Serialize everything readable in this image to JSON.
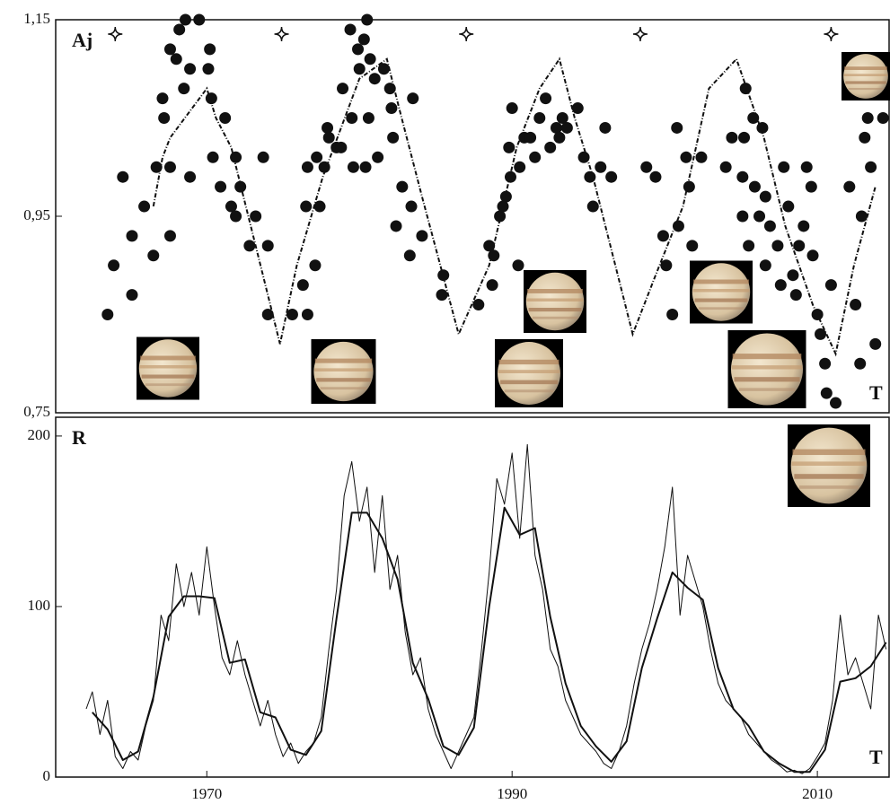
{
  "chart_data": [
    {
      "type": "scatter",
      "ylabel": "Aj",
      "xlabel": "T",
      "xlim": [
        1960.1,
        2014.7
      ],
      "ylim": [
        0.75,
        1.15
      ],
      "yticks": [
        {
          "value": 0.75,
          "label": "0,75"
        },
        {
          "value": 0.95,
          "label": "0,95"
        },
        {
          "value": 1.15,
          "label": "1,15"
        }
      ],
      "markers": [
        1964.0,
        1974.9,
        1987.0,
        1998.4,
        2010.9
      ],
      "points": {
        "color": "#111111",
        "x": [
          1963.5,
          1963.9,
          1964.5,
          1965.1,
          1965.1,
          1965.9,
          1966.5,
          1966.7,
          1967.1,
          1967.2,
          1967.6,
          1967.6,
          1967.6,
          1968.0,
          1968.2,
          1968.5,
          1968.6,
          1968.9,
          1968.9,
          1969.5,
          1970.1,
          1970.2,
          1970.3,
          1970.4,
          1970.9,
          1971.2,
          1971.6,
          1971.9,
          1972.2,
          1971.9,
          1972.8,
          1973.2,
          1973.7,
          1974.0,
          1974.0,
          1975.6,
          1976.6,
          1976.3,
          1976.5,
          1977.1,
          1976.6,
          1977.2,
          1977.4,
          1977.7,
          1977.9,
          1978.0,
          1978.5,
          1978.9,
          1978.8,
          1979.4,
          1979.5,
          1979.6,
          1979.9,
          1980.0,
          1980.3,
          1980.4,
          1980.5,
          1980.6,
          1980.7,
          1981.0,
          1981.2,
          1981.6,
          1982.0,
          1982.2,
          1982.1,
          1982.4,
          1982.8,
          1983.3,
          1983.4,
          1983.5,
          1984.1,
          1985.5,
          1985.4,
          1987.8,
          1988.5,
          1988.7,
          1988.8,
          1989.2,
          1989.4,
          1989.6,
          1989.9,
          1989.8,
          1990.0,
          1990.5,
          1990.4,
          1990.8,
          1991.2,
          1991.5,
          1991.8,
          1992.2,
          1992.5,
          1992.9,
          1993.1,
          1993.3,
          1993.6,
          1994.3,
          1994.7,
          1995.1,
          1995.3,
          1995.8,
          1996.5,
          1996.1,
          1998.8,
          1999.4,
          1999.9,
          2000.1,
          2000.5,
          2000.8,
          2000.9,
          2001.4,
          2001.6,
          2001.8,
          2002.4,
          2002.5,
          2004.0,
          2004.4,
          2005.1,
          2005.1,
          2005.2,
          2005.3,
          2005.5,
          2005.8,
          2005.9,
          2006.2,
          2006.4,
          2006.6,
          2006.6,
          2006.9,
          2007.4,
          2007.6,
          2007.8,
          2008.1,
          2008.4,
          2008.6,
          2008.8,
          2009.1,
          2009.3,
          2009.6,
          2009.7,
          2010.0,
          2010.2,
          2010.5,
          2010.6,
          2010.9,
          2011.2,
          2012.1,
          2012.5,
          2012.8,
          2012.9,
          2013.1,
          2013.3,
          2013.5,
          2013.8,
          2014.3
        ],
        "y": [
          0.85,
          0.9,
          0.99,
          0.93,
          0.87,
          0.96,
          0.91,
          1.0,
          1.07,
          1.05,
          1.0,
          0.93,
          1.12,
          1.11,
          1.14,
          1.08,
          1.15,
          1.1,
          0.99,
          1.15,
          1.1,
          1.12,
          1.07,
          1.01,
          0.98,
          1.05,
          0.96,
          1.01,
          0.98,
          0.95,
          0.92,
          0.95,
          1.01,
          0.92,
          0.85,
          0.85,
          0.85,
          0.88,
          0.96,
          0.9,
          1.0,
          1.01,
          0.96,
          1.0,
          1.04,
          1.03,
          1.02,
          1.08,
          1.02,
          1.14,
          1.05,
          1.0,
          1.12,
          1.1,
          1.13,
          1.0,
          1.15,
          1.05,
          1.11,
          1.09,
          1.01,
          1.1,
          1.08,
          1.03,
          1.06,
          0.94,
          0.98,
          0.91,
          0.96,
          1.07,
          0.93,
          0.89,
          0.87,
          0.86,
          0.92,
          0.88,
          0.91,
          0.95,
          0.96,
          0.97,
          0.99,
          1.02,
          1.06,
          1.0,
          0.9,
          1.03,
          1.03,
          1.01,
          1.05,
          1.07,
          1.02,
          1.04,
          1.03,
          1.05,
          1.04,
          1.06,
          1.01,
          0.99,
          0.96,
          1.0,
          0.99,
          1.04,
          1.0,
          0.99,
          0.93,
          0.9,
          0.85,
          1.04,
          0.94,
          1.01,
          0.98,
          0.92,
          1.01,
          0.87,
          1.0,
          1.03,
          0.99,
          0.95,
          1.03,
          1.08,
          0.92,
          1.05,
          0.98,
          0.95,
          1.04,
          0.97,
          0.9,
          0.94,
          0.92,
          0.88,
          1.0,
          0.96,
          0.89,
          0.87,
          0.92,
          0.94,
          1.0,
          0.98,
          0.91,
          0.85,
          0.83,
          0.8,
          0.77,
          0.88,
          0.76,
          0.98,
          0.86,
          0.8,
          0.95,
          1.03,
          1.05,
          1.0,
          0.82,
          1.05
        ]
      },
      "trend": {
        "color": "#111111",
        "x": [
          1966.5,
          1967.1,
          1967.6,
          1970.0,
          1970.6,
          1971.6,
          1974.8,
          1975.9,
          1977.6,
          1978.8,
          1980.0,
          1981.8,
          1982.6,
          1984.1,
          1986.5,
          1988.5,
          1990.3,
          1991.8,
          1993.1,
          1994.1,
          1995.3,
          1997.9,
          1999.4,
          2001.2,
          2002.9,
          2004.7,
          2006.5,
          2007.9,
          2009.7,
          2011.2,
          2012.4,
          2013.8
        ],
        "y": [
          0.96,
          1.01,
          1.03,
          1.08,
          1.05,
          1.02,
          0.82,
          0.9,
          0.99,
          1.04,
          1.09,
          1.11,
          1.06,
          0.97,
          0.83,
          0.9,
          1.02,
          1.08,
          1.11,
          1.05,
          0.99,
          0.83,
          0.89,
          0.96,
          1.08,
          1.11,
          1.03,
          0.94,
          0.86,
          0.81,
          0.9,
          0.98
        ]
      }
    },
    {
      "type": "line",
      "ylabel": "R",
      "xlabel": "T",
      "xlim": [
        1960.1,
        2014.7
      ],
      "ylim": [
        0,
        211
      ],
      "xticks": [
        1970,
        1990,
        2010
      ],
      "yticks": [
        0,
        100,
        200
      ],
      "series": [
        {
          "color": "#111111",
          "width": 1,
          "x": [
            1962.1,
            1962.5,
            1963.0,
            1963.5,
            1964.0,
            1964.5,
            1965.0,
            1965.5,
            1966.0,
            1966.5,
            1967.0,
            1967.5,
            1968.0,
            1968.5,
            1969.0,
            1969.5,
            1970.0,
            1970.5,
            1971.0,
            1971.5,
            1972.0,
            1972.5,
            1973.0,
            1973.5,
            1974.0,
            1974.5,
            1975.0,
            1975.5,
            1976.0,
            1976.5,
            1977.0,
            1977.5,
            1978.0,
            1978.5,
            1979.0,
            1979.5,
            1980.0,
            1980.5,
            1981.0,
            1981.5,
            1982.0,
            1982.5,
            1983.0,
            1983.5,
            1984.0,
            1984.5,
            1985.0,
            1985.5,
            1986.0,
            1986.5,
            1987.0,
            1987.5,
            1988.0,
            1988.5,
            1989.0,
            1989.5,
            1990.0,
            1990.5,
            1991.0,
            1991.5,
            1992.0,
            1992.5,
            1993.0,
            1993.5,
            1994.0,
            1994.5,
            1995.0,
            1995.5,
            1996.0,
            1996.5,
            1997.0,
            1997.5,
            1998.0,
            1998.5,
            1999.0,
            1999.5,
            2000.0,
            2000.5,
            2001.0,
            2001.5,
            2002.0,
            2002.5,
            2003.0,
            2003.5,
            2004.0,
            2004.5,
            2005.0,
            2005.5,
            2006.0,
            2006.5,
            2007.0,
            2007.5,
            2008.0,
            2008.5,
            2009.0,
            2009.5,
            2010.0,
            2010.5,
            2011.0,
            2011.5,
            2012.0,
            2012.5,
            2013.0,
            2013.5,
            2014.0,
            2014.5
          ],
          "values": [
            40,
            50,
            25,
            45,
            12,
            5,
            15,
            10,
            30,
            45,
            95,
            80,
            125,
            100,
            120,
            95,
            135,
            100,
            70,
            60,
            80,
            60,
            45,
            30,
            45,
            25,
            12,
            20,
            8,
            15,
            20,
            35,
            75,
            110,
            165,
            185,
            150,
            170,
            120,
            165,
            110,
            130,
            85,
            60,
            70,
            40,
            25,
            15,
            5,
            15,
            25,
            35,
            75,
            120,
            175,
            160,
            190,
            140,
            195,
            130,
            110,
            75,
            65,
            45,
            35,
            25,
            20,
            15,
            8,
            5,
            15,
            30,
            55,
            75,
            90,
            110,
            135,
            170,
            95,
            130,
            115,
            100,
            75,
            55,
            45,
            40,
            35,
            25,
            20,
            15,
            10,
            7,
            3,
            4,
            2,
            5,
            12,
            20,
            45,
            95,
            60,
            70,
            55,
            40,
            95,
            75
          ]
        },
        {
          "color": "#111111",
          "width": 2,
          "x": [
            1962.5,
            1963.5,
            1964.5,
            1965.5,
            1966.5,
            1967.5,
            1968.5,
            1969.5,
            1970.5,
            1971.5,
            1972.5,
            1973.5,
            1974.5,
            1975.5,
            1976.5,
            1977.5,
            1978.5,
            1979.5,
            1980.5,
            1981.5,
            1982.5,
            1983.5,
            1984.5,
            1985.5,
            1986.5,
            1987.5,
            1988.5,
            1989.5,
            1990.5,
            1991.5,
            1992.5,
            1993.5,
            1994.5,
            1995.5,
            1996.5,
            1997.5,
            1998.5,
            1999.5,
            2000.5,
            2001.5,
            2002.5,
            2003.5,
            2004.5,
            2005.5,
            2006.5,
            2007.5,
            2008.5,
            2009.5,
            2010.5,
            2011.5,
            2012.5,
            2013.5,
            2014.5
          ],
          "values": [
            38,
            28,
            10,
            15,
            47,
            94,
            106,
            106,
            105,
            67,
            69,
            38,
            35,
            16,
            13,
            27,
            93,
            155,
            155,
            140,
            116,
            67,
            46,
            18,
            13,
            29,
            100,
            158,
            142,
            146,
            94,
            55,
            30,
            18,
            9,
            21,
            64,
            93,
            120,
            111,
            104,
            64,
            40,
            30,
            15,
            8,
            3,
            3,
            16,
            56,
            58,
            65,
            79
          ]
        }
      ]
    }
  ]
}
